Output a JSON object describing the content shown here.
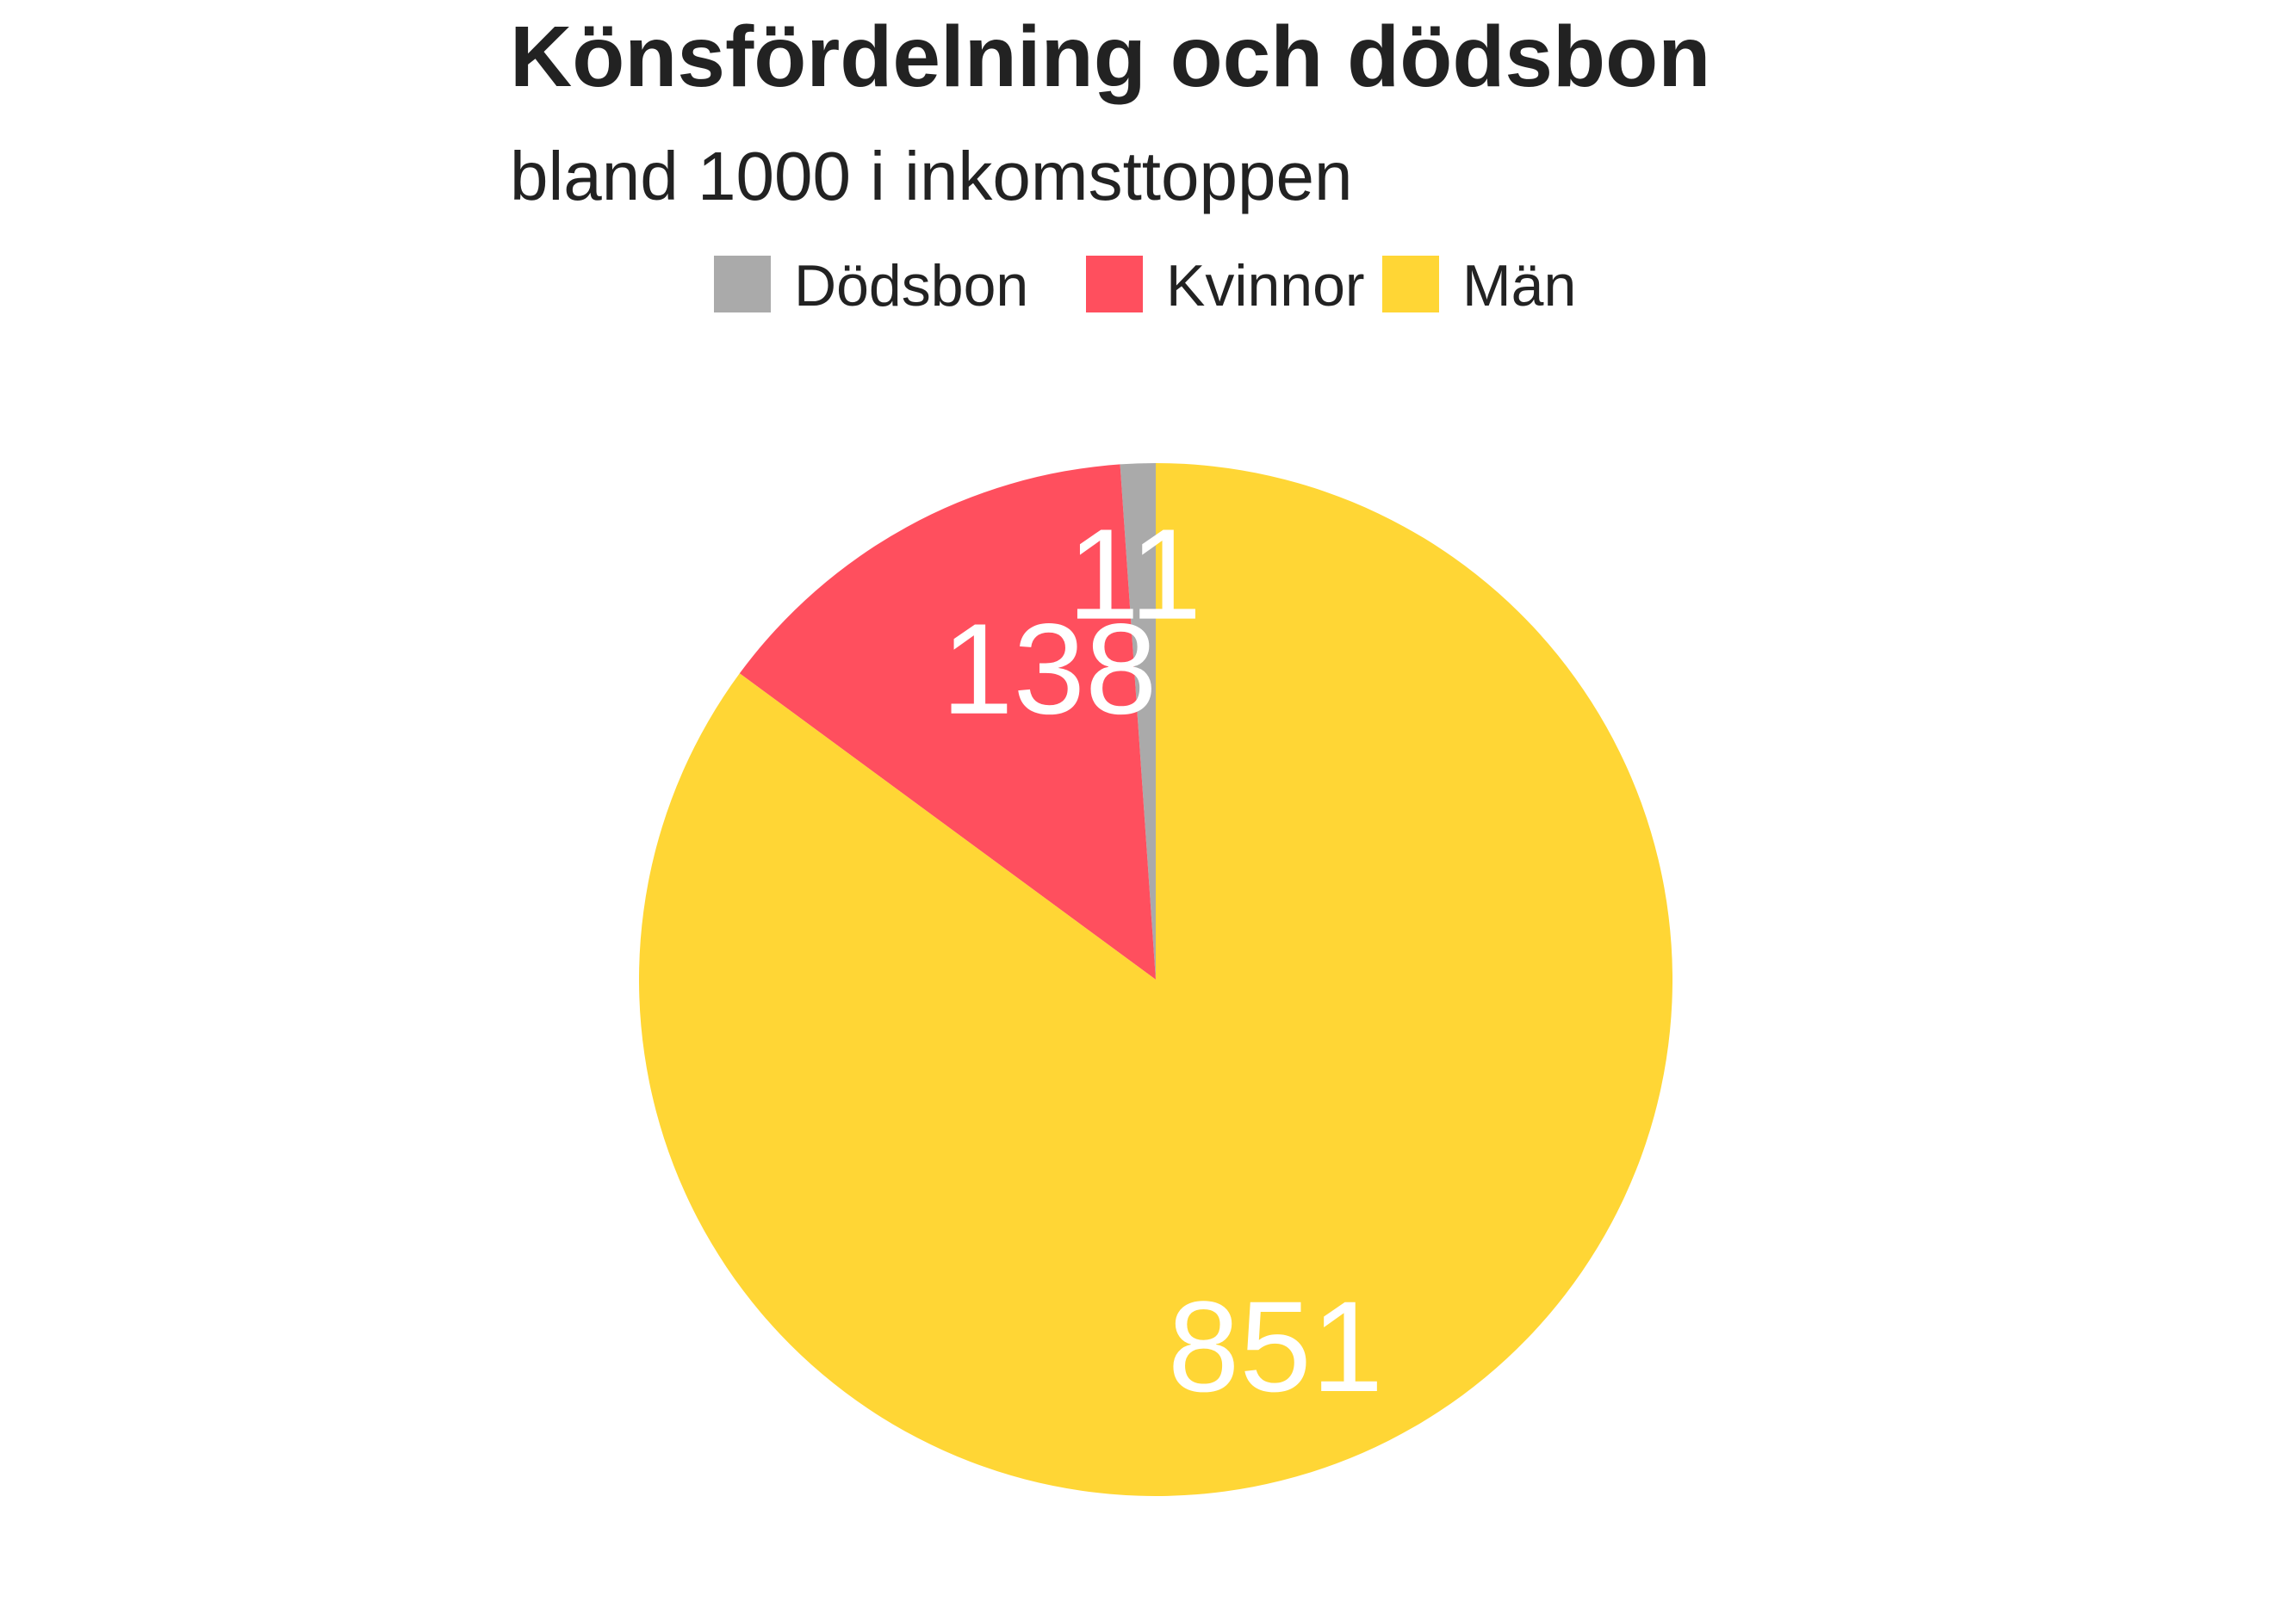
{
  "chart_data": {
    "type": "pie",
    "title": "Könsfördelning och dödsbon",
    "subtitle": "bland 1000 i inkomsttoppen",
    "legend_position": "top",
    "slices": [
      {
        "name": "Dödsbon",
        "value": 11,
        "color": "#AAAAAA"
      },
      {
        "name": "Kvinnor",
        "value": 138,
        "color": "#FF4F5E"
      },
      {
        "name": "Män",
        "value": 851,
        "color": "#FFD635"
      }
    ]
  }
}
